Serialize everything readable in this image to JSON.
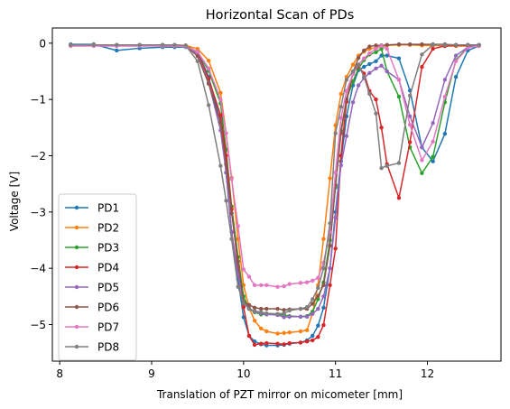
{
  "chart_data": {
    "type": "line",
    "title": "Horizontal Scan of PDs",
    "xlabel": "Translation of PZT mirror on micometer [mm]",
    "ylabel": "Voltage [V]",
    "xlim": [
      7.92,
      12.8
    ],
    "ylim": [
      -5.65,
      0.27
    ],
    "xticks": [
      8,
      9,
      10,
      11,
      12
    ],
    "xtick_labels": [
      "8",
      "9",
      "10",
      "11",
      "12"
    ],
    "yticks": [
      0,
      -1,
      -2,
      -3,
      -4,
      -5
    ],
    "ytick_labels": [
      "0",
      "−1",
      "−2",
      "−3",
      "−4",
      "−5"
    ],
    "grid": false,
    "legend_position": "lower-left",
    "x": [
      8.12,
      8.37,
      8.62,
      8.87,
      9.12,
      9.25,
      9.37,
      9.5,
      9.62,
      9.75,
      9.81,
      9.87,
      9.94,
      10.0,
      10.06,
      10.12,
      10.19,
      10.25,
      10.37,
      10.44,
      10.5,
      10.62,
      10.69,
      10.75,
      10.81,
      10.87,
      10.94,
      11.0,
      11.06,
      11.12,
      11.19,
      11.25,
      11.31,
      11.37,
      11.44,
      11.5,
      11.56,
      11.69,
      11.81,
      11.94,
      12.06,
      12.19,
      12.31,
      12.44,
      12.56
    ],
    "series": [
      {
        "name": "PD1",
        "color": "#1f77b4",
        "values": [
          -0.02,
          -0.02,
          -0.13,
          -0.09,
          -0.07,
          -0.07,
          -0.07,
          -0.15,
          -0.6,
          -1.4,
          -2.3,
          -3.36,
          -4.2,
          -4.87,
          -5.2,
          -5.3,
          -5.35,
          -5.37,
          -5.37,
          -5.36,
          -5.34,
          -5.32,
          -5.28,
          -5.2,
          -5.02,
          -4.7,
          -4.0,
          -3.0,
          -2.1,
          -1.3,
          -0.75,
          -0.48,
          -0.42,
          -0.37,
          -0.32,
          -0.22,
          -0.22,
          -0.27,
          -0.84,
          -1.85,
          -2.1,
          -1.61,
          -0.6,
          -0.13,
          -0.05
        ]
      },
      {
        "name": "PD2",
        "color": "#ff7f0e",
        "values": [
          -0.03,
          -0.03,
          -0.03,
          -0.03,
          -0.03,
          -0.03,
          -0.04,
          -0.1,
          -0.31,
          -0.88,
          -1.6,
          -2.39,
          -3.48,
          -4.3,
          -4.7,
          -4.93,
          -5.07,
          -5.12,
          -5.16,
          -5.15,
          -5.14,
          -5.12,
          -5.1,
          -4.8,
          -4.3,
          -3.48,
          -2.4,
          -1.46,
          -0.9,
          -0.6,
          -0.38,
          -0.22,
          -0.15,
          -0.1,
          -0.08,
          -0.05,
          -0.04,
          -0.03,
          -0.03,
          -0.04,
          -0.04,
          -0.05,
          -0.05,
          -0.05,
          -0.04
        ]
      },
      {
        "name": "PD3",
        "color": "#2ca02c",
        "values": [
          -0.04,
          -0.04,
          -0.04,
          -0.04,
          -0.04,
          -0.04,
          -0.05,
          -0.15,
          -0.49,
          -1.07,
          -1.89,
          -2.9,
          -3.8,
          -4.5,
          -4.72,
          -4.78,
          -4.82,
          -4.82,
          -4.82,
          -4.83,
          -4.85,
          -4.86,
          -4.85,
          -4.77,
          -4.55,
          -4.25,
          -3.5,
          -2.56,
          -1.55,
          -0.99,
          -0.68,
          -0.45,
          -0.3,
          -0.2,
          -0.16,
          -0.1,
          -0.5,
          -0.95,
          -1.85,
          -2.31,
          -2.02,
          -1.05,
          -0.3,
          -0.07,
          -0.04
        ]
      },
      {
        "name": "PD4",
        "color": "#d62728",
        "values": [
          -0.04,
          -0.04,
          -0.04,
          -0.04,
          -0.04,
          -0.04,
          -0.05,
          -0.16,
          -0.63,
          -1.28,
          -2.0,
          -2.95,
          -3.98,
          -4.69,
          -5.2,
          -5.36,
          -5.34,
          -5.33,
          -5.34,
          -5.35,
          -5.33,
          -5.32,
          -5.3,
          -5.28,
          -5.22,
          -5.01,
          -4.3,
          -3.65,
          -2.0,
          -1.04,
          -0.53,
          -0.41,
          -0.54,
          -0.85,
          -1.0,
          -1.5,
          -2.15,
          -2.75,
          -1.76,
          -0.42,
          -0.1,
          -0.05,
          -0.04,
          -0.04,
          -0.04
        ]
      },
      {
        "name": "PD5",
        "color": "#9467bd",
        "values": [
          -0.04,
          -0.04,
          -0.04,
          -0.04,
          -0.04,
          -0.04,
          -0.05,
          -0.19,
          -0.7,
          -1.55,
          -2.3,
          -3.35,
          -4.1,
          -4.6,
          -4.71,
          -4.77,
          -4.8,
          -4.82,
          -4.83,
          -4.87,
          -4.86,
          -4.86,
          -4.86,
          -4.81,
          -4.72,
          -4.5,
          -4.0,
          -3.1,
          -2.17,
          -1.65,
          -1.05,
          -0.75,
          -0.62,
          -0.53,
          -0.45,
          -0.4,
          -0.5,
          -0.65,
          -1.3,
          -1.85,
          -1.42,
          -0.65,
          -0.22,
          -0.07,
          -0.04
        ]
      },
      {
        "name": "PD6",
        "color": "#8c564b",
        "values": [
          -0.04,
          -0.04,
          -0.04,
          -0.04,
          -0.04,
          -0.04,
          -0.05,
          -0.23,
          -0.72,
          -1.42,
          -2.15,
          -3.02,
          -3.88,
          -4.6,
          -4.65,
          -4.7,
          -4.72,
          -4.72,
          -4.72,
          -4.74,
          -4.73,
          -4.72,
          -4.72,
          -4.63,
          -4.49,
          -4.3,
          -3.6,
          -2.52,
          -1.6,
          -1.0,
          -0.52,
          -0.26,
          -0.13,
          -0.06,
          -0.04,
          -0.04,
          -0.03,
          -0.02,
          -0.02,
          -0.02,
          -0.02,
          -0.02,
          -0.03,
          -0.03,
          -0.03
        ]
      },
      {
        "name": "PD7",
        "color": "#e377c2",
        "values": [
          -0.05,
          -0.05,
          -0.05,
          -0.05,
          -0.05,
          -0.05,
          -0.06,
          -0.15,
          -0.45,
          -1.0,
          -1.6,
          -2.41,
          -3.25,
          -4.02,
          -4.15,
          -4.3,
          -4.3,
          -4.3,
          -4.33,
          -4.32,
          -4.28,
          -4.26,
          -4.25,
          -4.22,
          -4.17,
          -3.9,
          -3.35,
          -2.3,
          -1.33,
          -0.85,
          -0.55,
          -0.38,
          -0.27,
          -0.18,
          -0.1,
          -0.05,
          -0.1,
          -0.65,
          -1.45,
          -2.08,
          -1.75,
          -0.95,
          -0.32,
          -0.08,
          -0.05
        ]
      },
      {
        "name": "PD8",
        "color": "#7f7f7f",
        "values": [
          -0.03,
          -0.03,
          -0.03,
          -0.03,
          -0.03,
          -0.03,
          -0.04,
          -0.32,
          -1.1,
          -2.18,
          -2.8,
          -3.48,
          -4.33,
          -4.62,
          -4.72,
          -4.76,
          -4.78,
          -4.8,
          -4.81,
          -4.8,
          -4.75,
          -4.72,
          -4.69,
          -4.55,
          -4.35,
          -4.0,
          -3.2,
          -1.6,
          -1.13,
          -0.65,
          -0.5,
          -0.38,
          -0.6,
          -0.9,
          -1.25,
          -2.22,
          -2.18,
          -2.13,
          -0.93,
          -0.2,
          -0.03,
          -0.03,
          -0.03,
          -0.03,
          -0.03
        ]
      }
    ]
  }
}
